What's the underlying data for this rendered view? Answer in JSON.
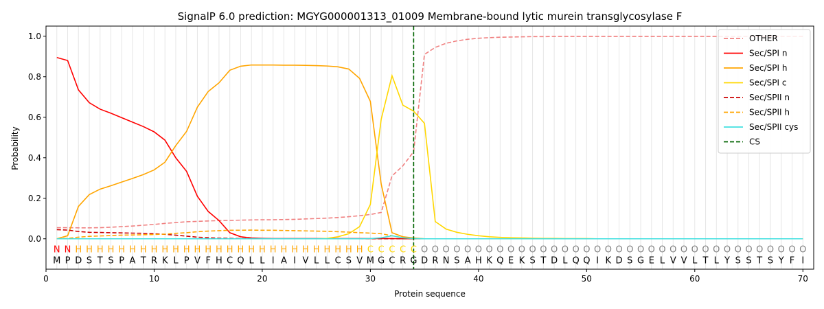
{
  "chart_data": {
    "type": "line",
    "title": "SignalP 6.0 prediction: MGYG000001313_01009 Membrane-bound lytic murein transglycosylase F",
    "xlabel": "Protein sequence",
    "ylabel": "Probability",
    "xlim": [
      0,
      71
    ],
    "ylim": [
      -0.15,
      1.05
    ],
    "xticks": [
      0,
      10,
      20,
      30,
      40,
      50,
      60,
      70
    ],
    "yticks": [
      0.0,
      0.2,
      0.4,
      0.6,
      0.8,
      1.0
    ],
    "ytick_labels": [
      "0.0",
      "0.2",
      "0.4",
      "0.6",
      "0.8",
      "1.0"
    ],
    "grid": "vertical lines at each residue",
    "legend_position": "top-right",
    "sequence": [
      "M",
      "P",
      "D",
      "S",
      "T",
      "S",
      "P",
      "A",
      "T",
      "R",
      "K",
      "L",
      "P",
      "V",
      "F",
      "H",
      "C",
      "Q",
      "L",
      "L",
      "I",
      "A",
      "I",
      "V",
      "L",
      "L",
      "C",
      "S",
      "V",
      "M",
      "G",
      "C",
      "R",
      "G",
      "D",
      "R",
      "N",
      "S",
      "A",
      "H",
      "K",
      "Q",
      "E",
      "K",
      "S",
      "T",
      "D",
      "L",
      "Q",
      "Q",
      "I",
      "K",
      "D",
      "S",
      "G",
      "E",
      "L",
      "V",
      "V",
      "L",
      "T",
      "L",
      "Y",
      "S",
      "S",
      "T",
      "S",
      "Y",
      "F",
      "I"
    ],
    "region_labels": [
      "N",
      "N",
      "H",
      "H",
      "H",
      "H",
      "H",
      "H",
      "H",
      "H",
      "H",
      "H",
      "H",
      "H",
      "H",
      "H",
      "H",
      "H",
      "H",
      "H",
      "H",
      "H",
      "H",
      "H",
      "H",
      "H",
      "H",
      "H",
      "H",
      "C",
      "C",
      "C",
      "C",
      "C",
      "O",
      "O",
      "O",
      "O",
      "O",
      "O",
      "O",
      "O",
      "O",
      "O",
      "O",
      "O",
      "O",
      "O",
      "O",
      "O",
      "O",
      "O",
      "O",
      "O",
      "O",
      "O",
      "O",
      "O",
      "O",
      "O",
      "O",
      "O",
      "O",
      "O",
      "O",
      "O",
      "O",
      "O",
      "O",
      "O"
    ],
    "region_colors": {
      "N": "#ff0000",
      "H": "#ffa500",
      "C": "#ffd700",
      "O": "#808080"
    },
    "cs_position": 34,
    "series": [
      {
        "name": "OTHER",
        "color": "#f08080",
        "dash": "dashed",
        "values": [
          0.055,
          0.055,
          0.054,
          0.054,
          0.055,
          0.057,
          0.06,
          0.063,
          0.067,
          0.071,
          0.076,
          0.08,
          0.084,
          0.086,
          0.088,
          0.09,
          0.091,
          0.092,
          0.093,
          0.094,
          0.094,
          0.095,
          0.096,
          0.098,
          0.1,
          0.102,
          0.105,
          0.109,
          0.114,
          0.12,
          0.13,
          0.31,
          0.36,
          0.43,
          0.91,
          0.945,
          0.965,
          0.977,
          0.985,
          0.99,
          0.993,
          0.995,
          0.996,
          0.997,
          0.998,
          0.998,
          0.999,
          0.999,
          0.999,
          0.999,
          0.999,
          0.999,
          0.999,
          0.999,
          0.999,
          0.999,
          0.999,
          0.999,
          0.999,
          0.999,
          0.999,
          0.999,
          0.999,
          0.999,
          0.999,
          0.999,
          0.999,
          0.999,
          0.999,
          0.999
        ]
      },
      {
        "name": "Sec/SPI n",
        "color": "#ff0000",
        "dash": "solid",
        "values": [
          0.895,
          0.88,
          0.735,
          0.672,
          0.64,
          0.62,
          0.598,
          0.576,
          0.554,
          0.528,
          0.487,
          0.4,
          0.333,
          0.21,
          0.135,
          0.09,
          0.03,
          0.01,
          0.004,
          0.002,
          0.001,
          0.001,
          0.001,
          0.001,
          0.001,
          0.001,
          0.001,
          0.001,
          0.001,
          0.001,
          0.001,
          0.001,
          0.0,
          0.0,
          0.0,
          0.0,
          0.0,
          0.0,
          0.0,
          0.0,
          0.0,
          0.0,
          0.0,
          0.0,
          0.0,
          0.0,
          0.0,
          0.0,
          0.0,
          0.0,
          0.0,
          0.0,
          0.0,
          0.0,
          0.0,
          0.0,
          0.0,
          0.0,
          0.0,
          0.0,
          0.0,
          0.0,
          0.0,
          0.0,
          0.0,
          0.0,
          0.0,
          0.0,
          0.0,
          0.0
        ]
      },
      {
        "name": "Sec/SPI h",
        "color": "#ffa500",
        "dash": "solid",
        "values": [
          0.0,
          0.015,
          0.16,
          0.218,
          0.245,
          0.262,
          0.28,
          0.298,
          0.317,
          0.34,
          0.378,
          0.46,
          0.53,
          0.65,
          0.727,
          0.77,
          0.832,
          0.852,
          0.858,
          0.858,
          0.858,
          0.857,
          0.857,
          0.856,
          0.855,
          0.853,
          0.849,
          0.838,
          0.792,
          0.678,
          0.27,
          0.03,
          0.01,
          0.004,
          0.0,
          0.0,
          0.0,
          0.0,
          0.0,
          0.0,
          0.0,
          0.0,
          0.0,
          0.0,
          0.0,
          0.0,
          0.0,
          0.0,
          0.0,
          0.0,
          0.0,
          0.0,
          0.0,
          0.0,
          0.0,
          0.0,
          0.0,
          0.0,
          0.0,
          0.0,
          0.0,
          0.0,
          0.0,
          0.0,
          0.0,
          0.0,
          0.0,
          0.0,
          0.0,
          0.0
        ]
      },
      {
        "name": "Sec/SPI c",
        "color": "#ffd700",
        "dash": "solid",
        "values": [
          0.0,
          0.0,
          0.0,
          0.0,
          0.0,
          0.0,
          0.0,
          0.0,
          0.0,
          0.0,
          0.0,
          0.0,
          0.0,
          0.0,
          0.0,
          0.0,
          0.0,
          0.0,
          0.0,
          0.0,
          0.0,
          0.0,
          0.0,
          0.0,
          0.0,
          0.002,
          0.01,
          0.025,
          0.06,
          0.17,
          0.59,
          0.805,
          0.66,
          0.63,
          0.57,
          0.085,
          0.048,
          0.032,
          0.022,
          0.015,
          0.01,
          0.007,
          0.005,
          0.004,
          0.003,
          0.002,
          0.002,
          0.001,
          0.001,
          0.001,
          0.0,
          0.0,
          0.0,
          0.0,
          0.0,
          0.0,
          0.0,
          0.0,
          0.0,
          0.0,
          0.0,
          0.0,
          0.0,
          0.0,
          0.0,
          0.0,
          0.0,
          0.0,
          0.0,
          0.0
        ]
      },
      {
        "name": "Sec/SPII n",
        "color": "#cc0000",
        "dash": "dashed",
        "values": [
          0.045,
          0.043,
          0.036,
          0.032,
          0.031,
          0.03,
          0.029,
          0.028,
          0.027,
          0.025,
          0.022,
          0.018,
          0.013,
          0.008,
          0.005,
          0.003,
          0.002,
          0.001,
          0.001,
          0.001,
          0.0,
          0.0,
          0.0,
          0.0,
          0.0,
          0.0,
          0.0,
          0.0,
          0.0,
          0.0,
          0.0,
          0.0,
          0.0,
          0.0,
          0.0,
          0.0,
          0.0,
          0.0,
          0.0,
          0.0,
          0.0,
          0.0,
          0.0,
          0.0,
          0.0,
          0.0,
          0.0,
          0.0,
          0.0,
          0.0,
          0.0,
          0.0,
          0.0,
          0.0,
          0.0,
          0.0,
          0.0,
          0.0,
          0.0,
          0.0,
          0.0,
          0.0,
          0.0,
          0.0,
          0.0,
          0.0,
          0.0,
          0.0,
          0.0,
          0.0
        ]
      },
      {
        "name": "Sec/SPII h",
        "color": "#ffa500",
        "dash": "dashed",
        "values": [
          0.0,
          0.002,
          0.008,
          0.012,
          0.014,
          0.016,
          0.018,
          0.019,
          0.02,
          0.021,
          0.023,
          0.027,
          0.03,
          0.035,
          0.038,
          0.04,
          0.042,
          0.042,
          0.043,
          0.042,
          0.042,
          0.041,
          0.04,
          0.039,
          0.038,
          0.037,
          0.035,
          0.033,
          0.03,
          0.028,
          0.025,
          0.015,
          0.005,
          0.002,
          0.0,
          0.0,
          0.0,
          0.0,
          0.0,
          0.0,
          0.0,
          0.0,
          0.0,
          0.0,
          0.0,
          0.0,
          0.0,
          0.0,
          0.0,
          0.0,
          0.0,
          0.0,
          0.0,
          0.0,
          0.0,
          0.0,
          0.0,
          0.0,
          0.0,
          0.0,
          0.0,
          0.0,
          0.0,
          0.0,
          0.0,
          0.0,
          0.0,
          0.0,
          0.0,
          0.0
        ]
      },
      {
        "name": "Sec/SPII cys",
        "color": "#40e0e0",
        "dash": "solid",
        "values": [
          0.0,
          0.0,
          0.0,
          0.0,
          0.0,
          0.0,
          0.0,
          0.0,
          0.0,
          0.0,
          0.0,
          0.0,
          0.0,
          0.0,
          0.0,
          0.0,
          0.0,
          0.0,
          0.0,
          0.0,
          0.0,
          0.0,
          0.0,
          0.0,
          0.0,
          0.0,
          0.0,
          0.0,
          0.0,
          0.001,
          0.005,
          0.015,
          0.005,
          0.001,
          0.0,
          0.0,
          0.0,
          0.0,
          0.0,
          0.0,
          0.0,
          0.0,
          0.0,
          0.0,
          0.0,
          0.0,
          0.0,
          0.0,
          0.0,
          0.0,
          0.0,
          0.0,
          0.0,
          0.0,
          0.0,
          0.0,
          0.0,
          0.0,
          0.0,
          0.0,
          0.0,
          0.0,
          0.0,
          0.0,
          0.0,
          0.0,
          0.0,
          0.0,
          0.0,
          0.0
        ]
      },
      {
        "name": "CS",
        "color": "#006400",
        "dash": "dashed",
        "values": []
      }
    ]
  }
}
